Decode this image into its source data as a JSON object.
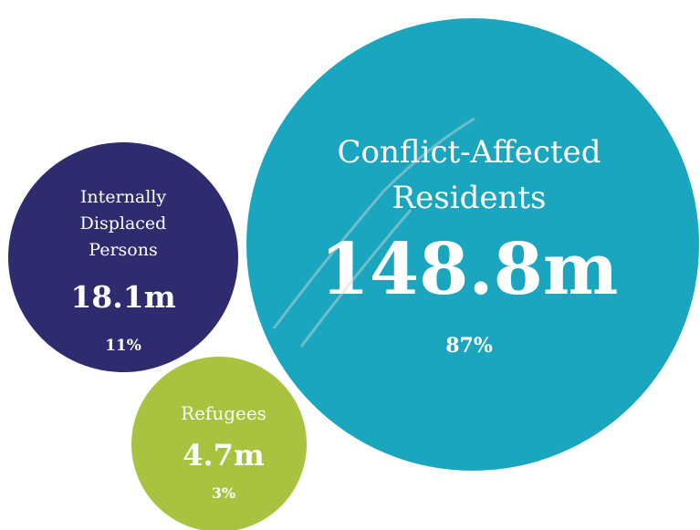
{
  "chart_data": {
    "type": "bubble",
    "title": "",
    "series": [
      {
        "name": "Conflict-Affected Residents",
        "label_lines": [
          "Conflict-Affected",
          "Residents"
        ],
        "value": 148.8,
        "value_label": "148.8m",
        "share_label": "87%",
        "color": "#1aa6bf"
      },
      {
        "name": "Internally Displaced Persons",
        "label_lines": [
          "Internally",
          "Displaced",
          "Persons"
        ],
        "value": 18.1,
        "value_label": "18.1m",
        "share_label": "11%",
        "color": "#2e2c6e"
      },
      {
        "name": "Refugees",
        "label_lines": [
          "Refugees"
        ],
        "value": 4.7,
        "value_label": "4.7m",
        "share_label": "3%",
        "color": "#a9c23f"
      }
    ]
  }
}
